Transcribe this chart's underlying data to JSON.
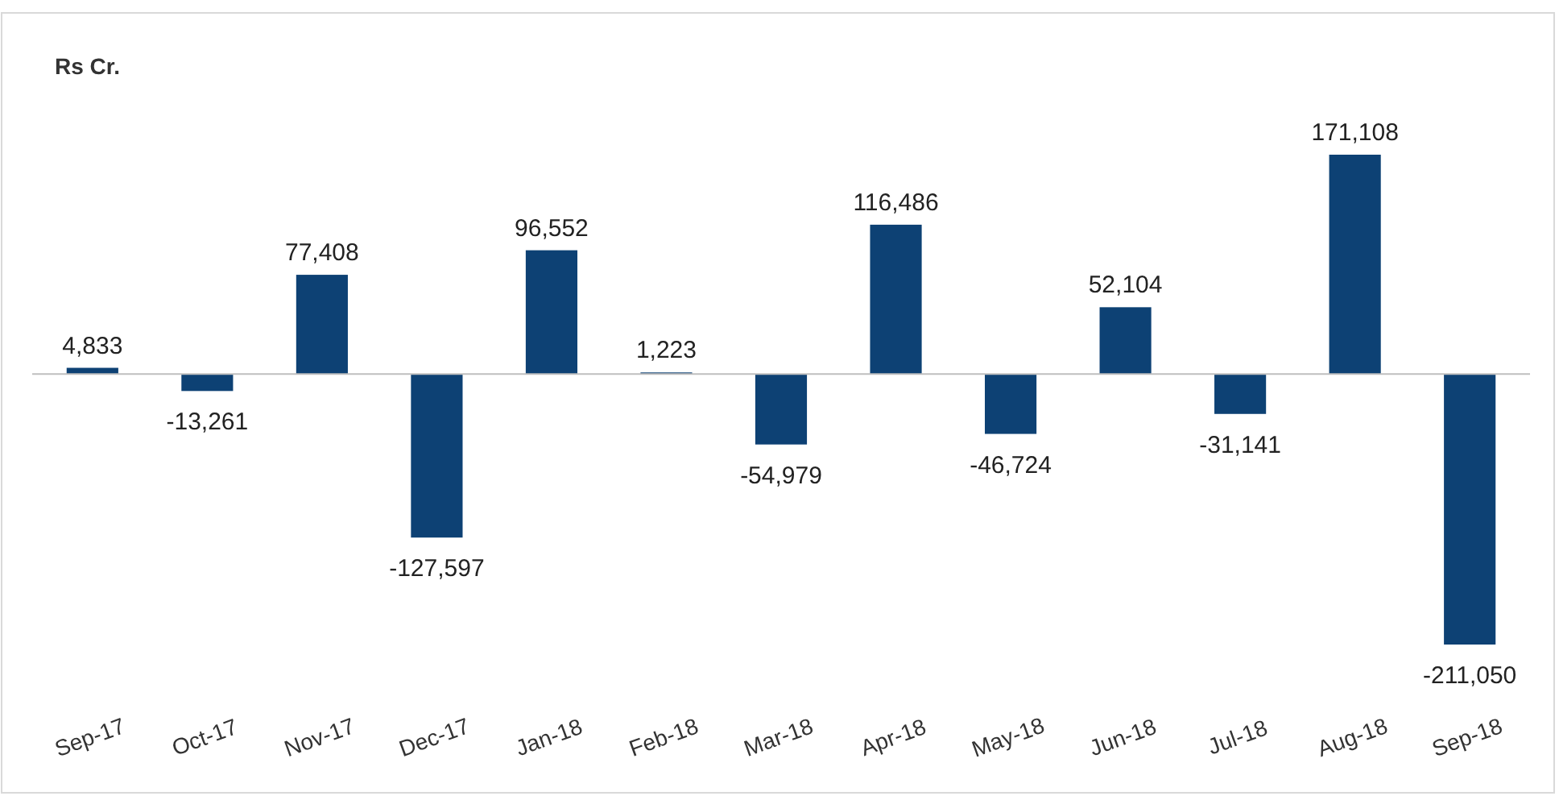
{
  "chart_data": {
    "type": "bar",
    "ylabel": "Rs Cr.",
    "categories": [
      "Sep-17",
      "Oct-17",
      "Nov-17",
      "Dec-17",
      "Jan-18",
      "Feb-18",
      "Mar-18",
      "Apr-18",
      "May-18",
      "Jun-18",
      "Jul-18",
      "Aug-18",
      "Sep-18"
    ],
    "values": [
      4833,
      -13261,
      77408,
      -127597,
      96552,
      1223,
      -54979,
      116486,
      -46724,
      52104,
      -31141,
      171108,
      -211050
    ],
    "value_labels": [
      "4,833",
      "-13,261",
      "77,408",
      "-127,597",
      "96,552",
      "1,223",
      "-54,979",
      "116,486",
      "-46,724",
      "52,104",
      "-31,141",
      "171,108",
      "-211,050"
    ],
    "color": "#0d4174"
  }
}
